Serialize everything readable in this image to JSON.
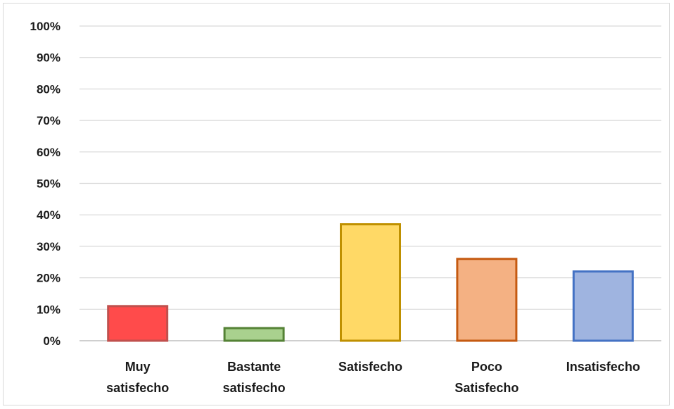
{
  "chart_data": {
    "type": "bar",
    "categories": [
      [
        "Muy",
        "satisfecho"
      ],
      [
        "Bastante",
        "satisfecho"
      ],
      [
        "Satisfecho"
      ],
      [
        "Poco",
        "Satisfecho"
      ],
      [
        "Insatisfecho"
      ]
    ],
    "values": [
      11,
      4,
      37,
      26,
      22
    ],
    "bar_fills": [
      "#ff4b4b",
      "#a9d18e",
      "#ffd966",
      "#f4b183",
      "#9fb4e0"
    ],
    "bar_strokes": [
      "#c0504d",
      "#548235",
      "#bf9000",
      "#c55a11",
      "#4472c4"
    ],
    "ylim": [
      0,
      100
    ],
    "y_ticks": [
      "0%",
      "10%",
      "20%",
      "30%",
      "40%",
      "50%",
      "60%",
      "70%",
      "80%",
      "90%",
      "100%"
    ],
    "grid": true,
    "legend": "none",
    "title": "",
    "xlabel": "",
    "ylabel": ""
  }
}
